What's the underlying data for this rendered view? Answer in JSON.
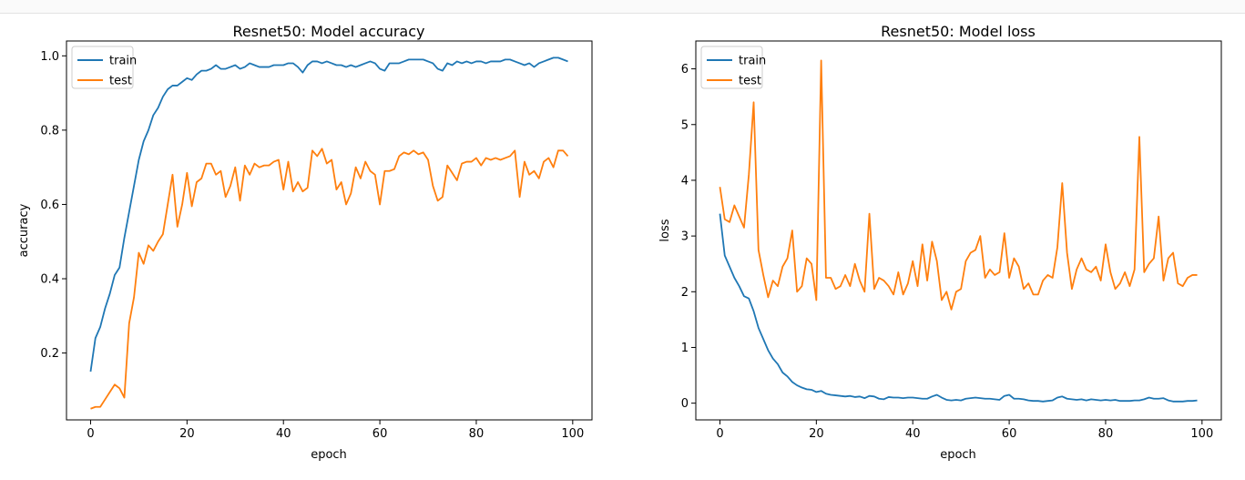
{
  "colors": {
    "train": "#1f77b4",
    "test": "#ff7f0e"
  },
  "chart_data": [
    {
      "type": "line",
      "title": "Resnet50: Model accuracy",
      "xlabel": "epoch",
      "ylabel": "accuracy",
      "xlim": [
        -5,
        104
      ],
      "ylim": [
        0.02,
        1.04
      ],
      "xticks": [
        0,
        20,
        40,
        60,
        80,
        100
      ],
      "yticks": [
        0.2,
        0.4,
        0.6,
        0.8,
        1.0
      ],
      "ytick_labels": [
        "0.2",
        "0.4",
        "0.6",
        "0.8",
        "1.0"
      ],
      "legend": "upper-left",
      "series": [
        {
          "name": "train",
          "values": [
            0.15,
            0.24,
            0.27,
            0.32,
            0.36,
            0.41,
            0.43,
            0.51,
            0.58,
            0.65,
            0.72,
            0.77,
            0.8,
            0.84,
            0.86,
            0.89,
            0.91,
            0.92,
            0.92,
            0.93,
            0.94,
            0.935,
            0.95,
            0.96,
            0.96,
            0.965,
            0.975,
            0.965,
            0.965,
            0.97,
            0.975,
            0.965,
            0.97,
            0.98,
            0.975,
            0.97,
            0.97,
            0.97,
            0.975,
            0.975,
            0.975,
            0.98,
            0.98,
            0.97,
            0.955,
            0.975,
            0.985,
            0.985,
            0.98,
            0.985,
            0.98,
            0.975,
            0.975,
            0.97,
            0.975,
            0.97,
            0.975,
            0.98,
            0.985,
            0.98,
            0.965,
            0.96,
            0.98,
            0.98,
            0.98,
            0.985,
            0.99,
            0.99,
            0.99,
            0.99,
            0.985,
            0.98,
            0.965,
            0.96,
            0.98,
            0.975,
            0.985,
            0.98,
            0.985,
            0.98,
            0.985,
            0.985,
            0.98,
            0.985,
            0.985,
            0.985,
            0.99,
            0.99,
            0.985,
            0.98,
            0.975,
            0.98,
            0.97,
            0.98,
            0.985,
            0.99,
            0.995,
            0.995,
            0.99,
            0.985
          ]
        },
        {
          "name": "test",
          "values": [
            0.05,
            0.055,
            0.055,
            0.075,
            0.095,
            0.115,
            0.105,
            0.08,
            0.28,
            0.35,
            0.47,
            0.44,
            0.49,
            0.475,
            0.5,
            0.52,
            0.6,
            0.68,
            0.54,
            0.6,
            0.685,
            0.595,
            0.66,
            0.67,
            0.71,
            0.71,
            0.68,
            0.69,
            0.62,
            0.65,
            0.7,
            0.61,
            0.705,
            0.68,
            0.71,
            0.7,
            0.705,
            0.705,
            0.715,
            0.72,
            0.64,
            0.715,
            0.635,
            0.66,
            0.635,
            0.645,
            0.745,
            0.73,
            0.75,
            0.71,
            0.72,
            0.64,
            0.66,
            0.6,
            0.63,
            0.7,
            0.67,
            0.715,
            0.69,
            0.68,
            0.6,
            0.69,
            0.69,
            0.695,
            0.73,
            0.74,
            0.735,
            0.745,
            0.735,
            0.74,
            0.72,
            0.65,
            0.61,
            0.62,
            0.705,
            0.685,
            0.665,
            0.71,
            0.715,
            0.715,
            0.725,
            0.705,
            0.725,
            0.72,
            0.725,
            0.72,
            0.725,
            0.73,
            0.745,
            0.62,
            0.715,
            0.68,
            0.69,
            0.67,
            0.715,
            0.725,
            0.7,
            0.745,
            0.745,
            0.73
          ]
        }
      ]
    },
    {
      "type": "line",
      "title": "Resnet50: Model loss",
      "xlabel": "epoch",
      "ylabel": "loss",
      "xlim": [
        -5,
        104
      ],
      "ylim": [
        -0.3,
        6.5
      ],
      "xticks": [
        0,
        20,
        40,
        60,
        80,
        100
      ],
      "yticks": [
        0,
        1,
        2,
        3,
        4,
        5,
        6
      ],
      "ytick_labels": [
        "0",
        "1",
        "2",
        "3",
        "4",
        "5",
        "6"
      ],
      "legend": "upper-left",
      "series": [
        {
          "name": "train",
          "values": [
            3.4,
            2.65,
            2.45,
            2.25,
            2.1,
            1.92,
            1.88,
            1.65,
            1.35,
            1.15,
            0.95,
            0.8,
            0.7,
            0.55,
            0.48,
            0.38,
            0.32,
            0.28,
            0.25,
            0.24,
            0.2,
            0.22,
            0.17,
            0.15,
            0.14,
            0.13,
            0.12,
            0.13,
            0.11,
            0.12,
            0.09,
            0.13,
            0.12,
            0.08,
            0.07,
            0.11,
            0.1,
            0.1,
            0.09,
            0.1,
            0.1,
            0.09,
            0.08,
            0.08,
            0.12,
            0.15,
            0.1,
            0.06,
            0.05,
            0.06,
            0.05,
            0.08,
            0.09,
            0.1,
            0.09,
            0.08,
            0.08,
            0.07,
            0.06,
            0.13,
            0.15,
            0.08,
            0.08,
            0.07,
            0.05,
            0.04,
            0.04,
            0.03,
            0.04,
            0.05,
            0.1,
            0.12,
            0.08,
            0.07,
            0.06,
            0.07,
            0.05,
            0.07,
            0.06,
            0.05,
            0.06,
            0.05,
            0.06,
            0.04,
            0.04,
            0.04,
            0.05,
            0.05,
            0.07,
            0.1,
            0.08,
            0.08,
            0.09,
            0.05,
            0.03,
            0.03,
            0.03,
            0.04,
            0.04,
            0.05
          ]
        },
        {
          "name": "test",
          "values": [
            3.88,
            3.3,
            3.25,
            3.55,
            3.35,
            3.15,
            4.1,
            5.4,
            2.75,
            2.3,
            1.9,
            2.2,
            2.1,
            2.45,
            2.6,
            3.1,
            2.0,
            2.1,
            2.6,
            2.5,
            1.85,
            6.15,
            2.25,
            2.25,
            2.05,
            2.1,
            2.3,
            2.1,
            2.5,
            2.2,
            2.0,
            3.4,
            2.05,
            2.25,
            2.2,
            2.1,
            1.95,
            2.35,
            1.95,
            2.15,
            2.55,
            2.1,
            2.85,
            2.2,
            2.9,
            2.55,
            1.85,
            2.0,
            1.68,
            2.0,
            2.05,
            2.55,
            2.7,
            2.75,
            3.0,
            2.25,
            2.4,
            2.3,
            2.35,
            3.05,
            2.25,
            2.6,
            2.45,
            2.05,
            2.15,
            1.95,
            1.95,
            2.2,
            2.3,
            2.25,
            2.8,
            3.95,
            2.7,
            2.05,
            2.4,
            2.6,
            2.4,
            2.35,
            2.45,
            2.2,
            2.85,
            2.35,
            2.05,
            2.15,
            2.35,
            2.1,
            2.4,
            4.78,
            2.35,
            2.5,
            2.6,
            3.35,
            2.2,
            2.6,
            2.7,
            2.15,
            2.1,
            2.25,
            2.3,
            2.3
          ]
        }
      ]
    }
  ]
}
